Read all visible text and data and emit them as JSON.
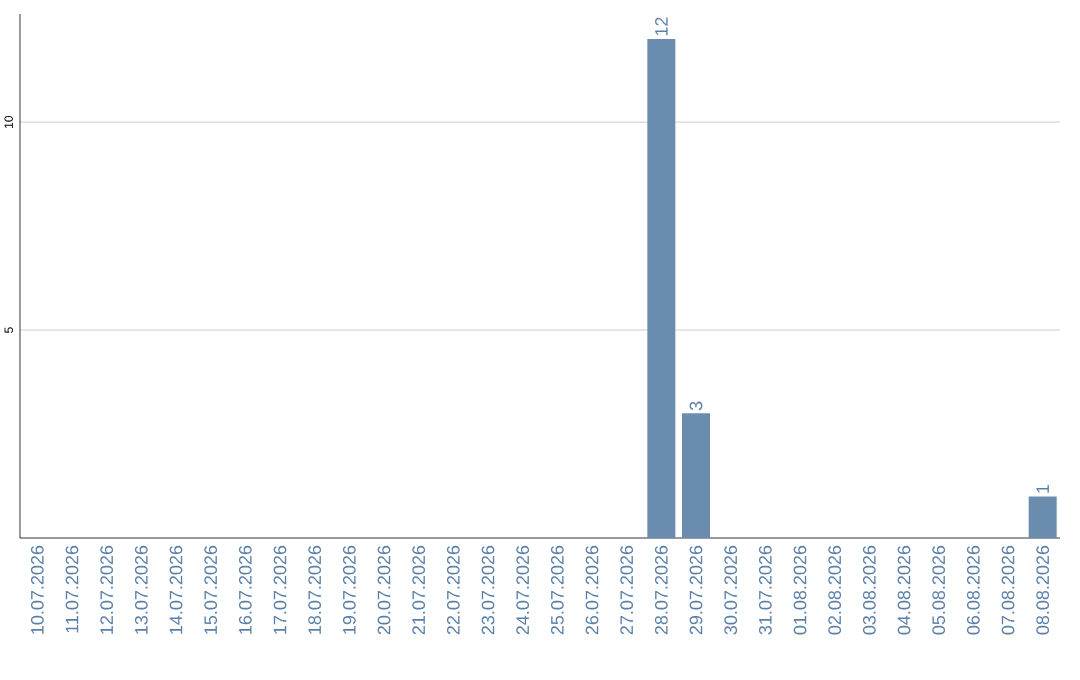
{
  "chart_data": {
    "type": "bar",
    "categories": [
      "10.07.2026",
      "11.07.2026",
      "12.07.2026",
      "13.07.2026",
      "14.07.2026",
      "15.07.2026",
      "16.07.2026",
      "17.07.2026",
      "18.07.2026",
      "19.07.2026",
      "20.07.2026",
      "21.07.2026",
      "22.07.2026",
      "23.07.2026",
      "24.07.2026",
      "25.07.2026",
      "26.07.2026",
      "27.07.2026",
      "28.07.2026",
      "29.07.2026",
      "30.07.2026",
      "31.07.2026",
      "01.08.2026",
      "02.08.2026",
      "03.08.2026",
      "04.08.2026",
      "05.08.2026",
      "06.08.2026",
      "07.08.2026",
      "08.08.2026"
    ],
    "values": [
      0,
      0,
      0,
      0,
      0,
      0,
      0,
      0,
      0,
      0,
      0,
      0,
      0,
      0,
      0,
      0,
      0,
      0,
      12,
      3,
      0,
      0,
      0,
      0,
      0,
      0,
      0,
      0,
      0,
      1
    ],
    "value_labels": [
      null,
      null,
      null,
      null,
      null,
      null,
      null,
      null,
      null,
      null,
      null,
      null,
      null,
      null,
      null,
      null,
      null,
      null,
      "12",
      "3",
      null,
      null,
      null,
      null,
      null,
      null,
      null,
      null,
      null,
      "1"
    ],
    "color": "#6a8caf",
    "ylim": [
      0,
      12.6
    ],
    "yticks": [
      5,
      10
    ],
    "grid": "y"
  }
}
